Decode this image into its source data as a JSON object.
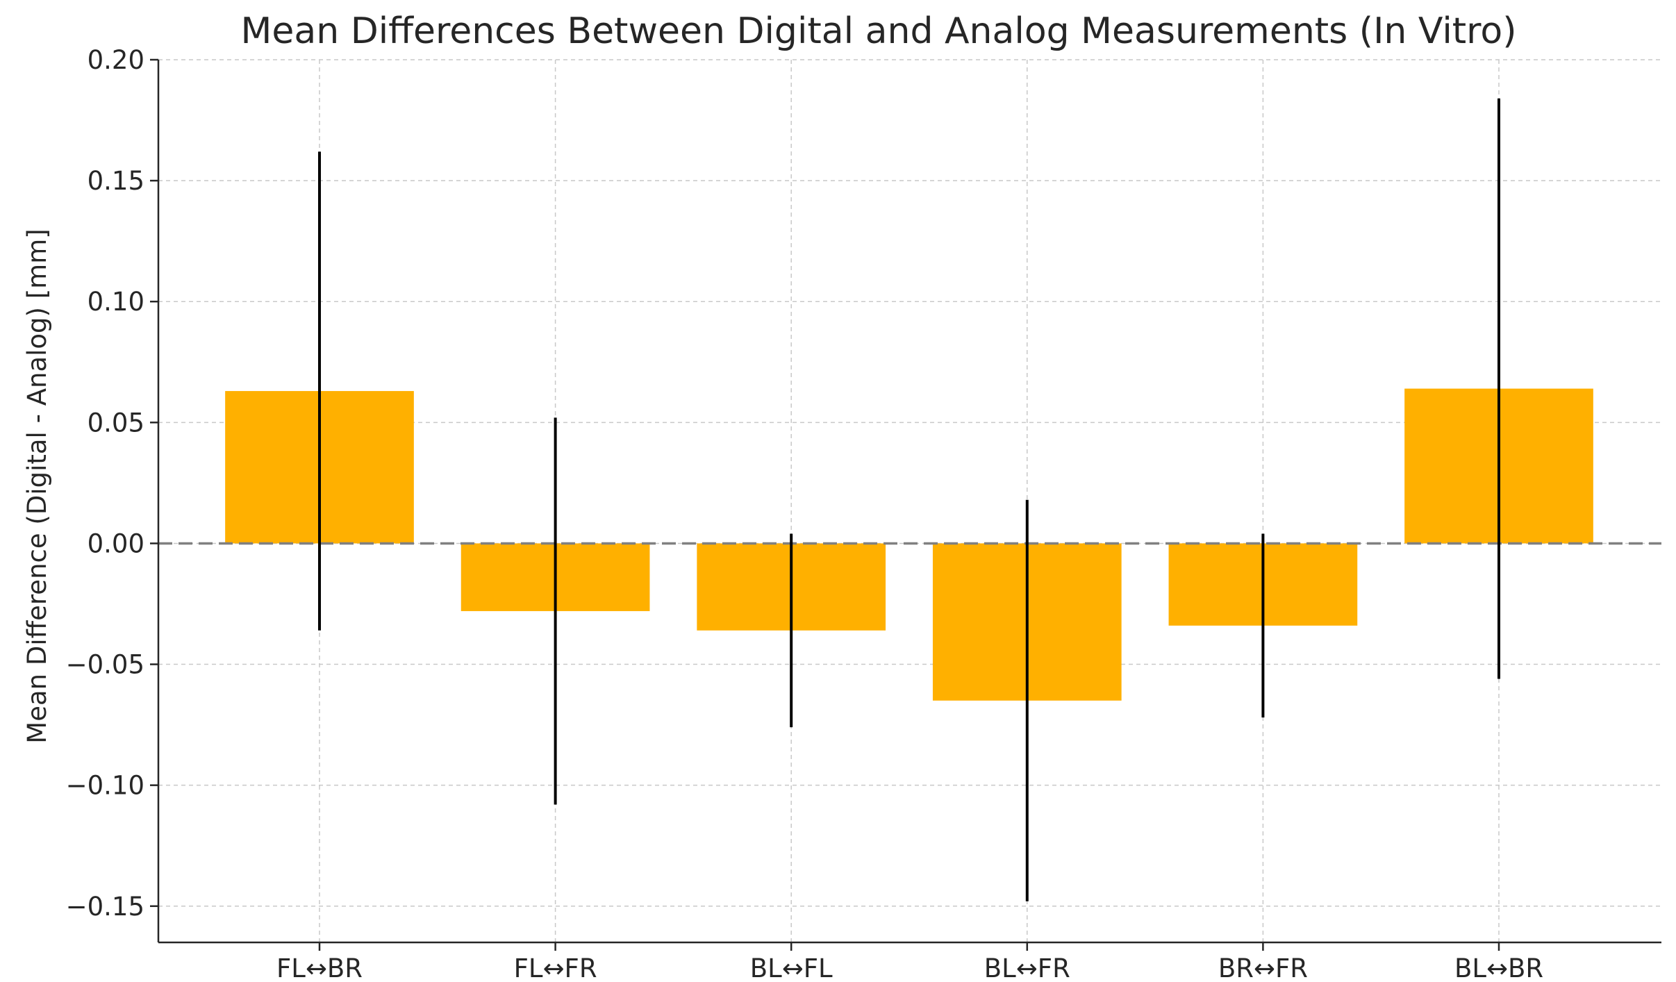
{
  "chart_data": {
    "type": "bar",
    "title": "Mean Differences Between Digital and Analog Measurements (In Vitro)",
    "xlabel": "",
    "ylabel": "Mean Difference (Digital - Analog) [mm]",
    "categories": [
      "FL↔BR",
      "FL↔FR",
      "BL↔FL",
      "BL↔FR",
      "BR↔FR",
      "BL↔BR"
    ],
    "values": [
      0.063,
      -0.028,
      -0.036,
      -0.065,
      -0.034,
      0.064
    ],
    "error_low": [
      -0.036,
      -0.108,
      -0.076,
      -0.148,
      -0.072,
      -0.056
    ],
    "error_high": [
      0.162,
      0.052,
      0.004,
      0.018,
      0.004,
      0.184
    ],
    "ylim": [
      -0.165,
      0.2
    ],
    "yticks": [
      -0.15,
      -0.1,
      -0.05,
      0.0,
      0.05,
      0.1,
      0.15,
      0.2
    ],
    "ytick_labels": [
      "−0.15",
      "−0.10",
      "−0.05",
      "0.00",
      "0.05",
      "0.10",
      "0.15",
      "0.20"
    ],
    "reference_line": 0.0,
    "grid": true,
    "legend": "none",
    "colors": {
      "bar": "#FFB000",
      "error_bar": "#000000",
      "reference_line": "#808080"
    }
  }
}
